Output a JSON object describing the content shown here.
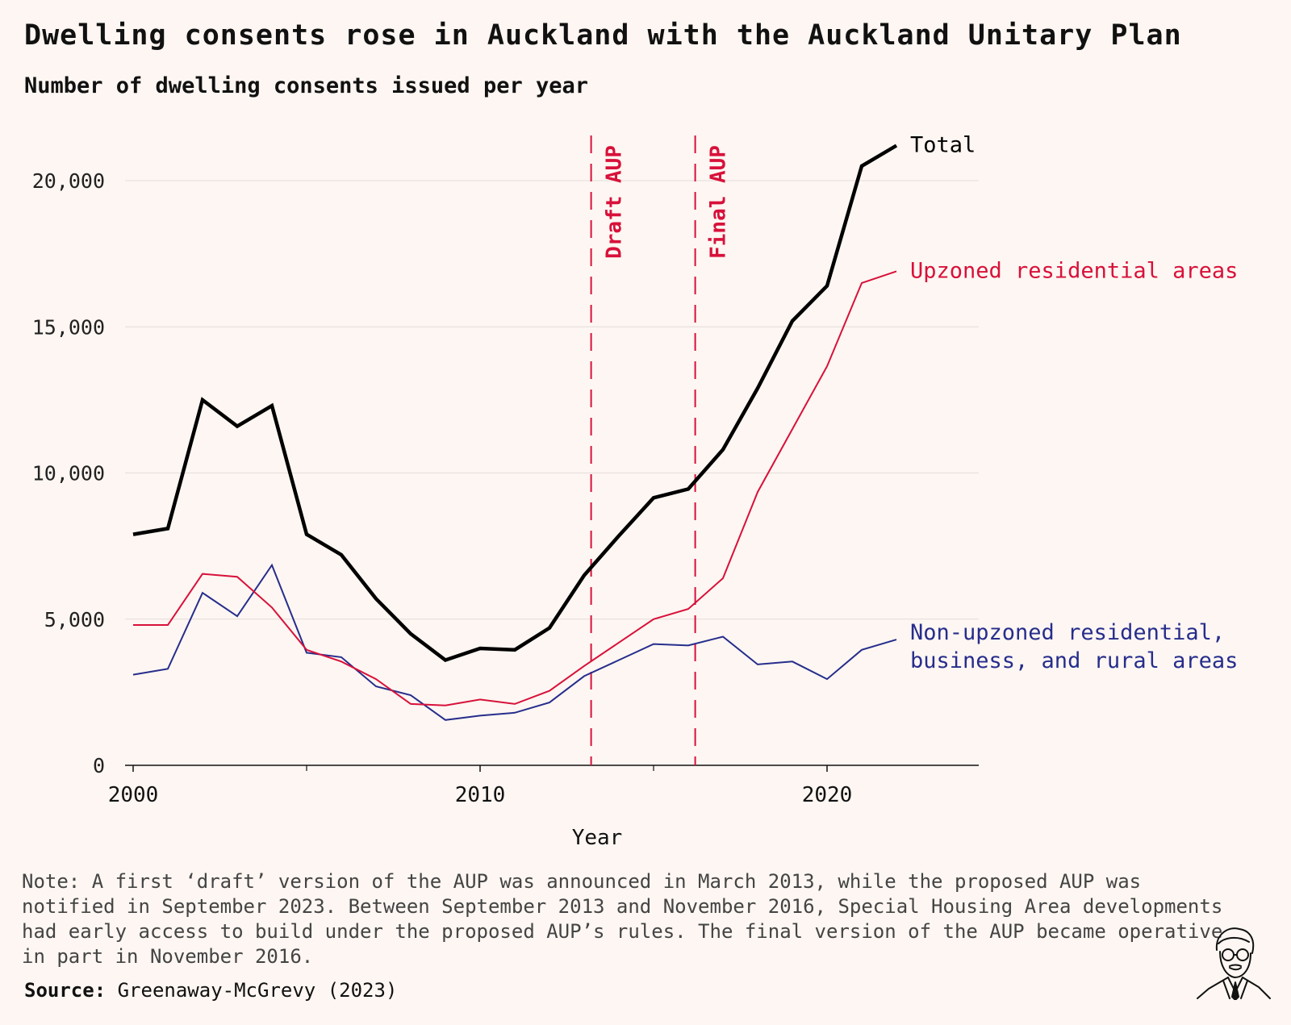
{
  "title": "Dwelling consents rose in Auckland with the Auckland Unitary Plan",
  "subtitle": "Number of dwelling consents issued per year",
  "note": "Note: A first ‘draft’ version of the AUP was announced in March 2013, while the proposed AUP was notified in September 2023. Between September 2013 and November 2016, Special Housing Area developments had early access to build under the proposed AUP’s rules. The final version of the AUP became operative in part in November 2016.",
  "source_label": "Source:",
  "source_text": "Greenaway-McGrevy (2023)",
  "colors": {
    "background": "#fdf6f2",
    "total": "#000000",
    "upzoned": "#d8113a",
    "non_upzoned": "#262d8c",
    "grid": "#e3dcd8"
  },
  "chart_data": {
    "type": "line",
    "xlabel": "Year",
    "ylabel": "",
    "xlim": [
      2000,
      2024.5
    ],
    "ylim": [
      0,
      22000
    ],
    "xticks": [
      2000,
      2010,
      2020
    ],
    "xtick_labels": [
      "2000",
      "2010",
      "2020"
    ],
    "xminor_ticks": [
      2005,
      2015
    ],
    "yticks": [
      0,
      5000,
      10000,
      15000,
      20000
    ],
    "ytick_labels": [
      "0",
      "5,000",
      "10,000",
      "15,000",
      "20,000"
    ],
    "grid": "horizontal",
    "x": [
      2000,
      2001,
      2002,
      2003,
      2004,
      2005,
      2006,
      2007,
      2008,
      2009,
      2010,
      2011,
      2012,
      2013,
      2014,
      2015,
      2016,
      2017,
      2018,
      2019,
      2020,
      2021,
      2022
    ],
    "series": [
      {
        "name": "Total",
        "color_key": "total",
        "values": [
          7900,
          8100,
          12500,
          11600,
          12300,
          7900,
          7200,
          5700,
          4500,
          3600,
          4000,
          3950,
          4700,
          6500,
          7850,
          9150,
          9450,
          10800,
          12900,
          15200,
          16400,
          20500,
          21200
        ]
      },
      {
        "name": "Upzoned residential areas",
        "color_key": "upzoned",
        "values": [
          4800,
          4800,
          6550,
          6450,
          5400,
          3950,
          3550,
          2950,
          2100,
          2050,
          2250,
          2100,
          2550,
          3400,
          4200,
          5000,
          5350,
          6400,
          9350,
          11500,
          13650,
          16500,
          16900
        ]
      },
      {
        "name": "Non-upzoned residential, business, and rural areas",
        "color_key": "non_upzoned",
        "values": [
          3100,
          3300,
          5900,
          5100,
          6850,
          3850,
          3700,
          2700,
          2400,
          1550,
          1700,
          1800,
          2150,
          3050,
          3600,
          4150,
          4100,
          4400,
          3450,
          3550,
          2950,
          3950,
          4300
        ]
      }
    ],
    "series_labels": [
      [
        "Total"
      ],
      [
        "Upzoned residential areas"
      ],
      [
        "Non-upzoned residential,",
        "business, and rural areas"
      ]
    ],
    "annotations": [
      {
        "label": "Draft AUP",
        "x": 2013.2,
        "style": "dashed-vertical"
      },
      {
        "label": "Final AUP",
        "x": 2016.2,
        "style": "dashed-vertical"
      }
    ]
  }
}
